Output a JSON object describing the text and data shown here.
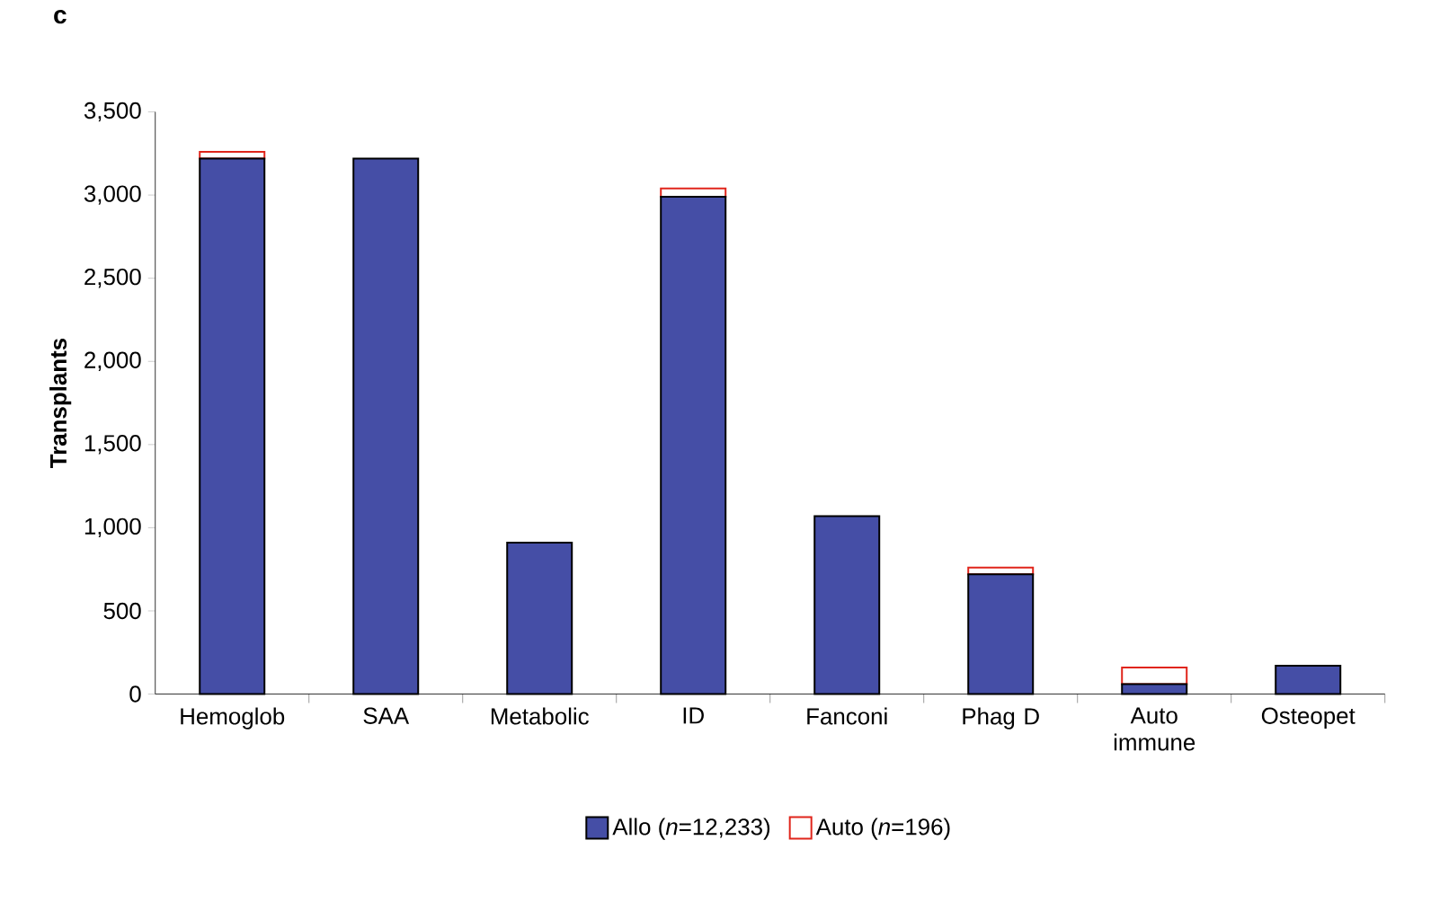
{
  "chart_data": {
    "type": "bar",
    "title": "c",
    "ylabel": "Transplants",
    "stacked": true,
    "legend": "bottom",
    "grid": false,
    "categories": [
      "Hemoglob",
      "SAA",
      "Metabolic",
      "ID",
      "Fanconi",
      "Phag D",
      "Auto immune",
      "Osteopet"
    ],
    "series": [
      {
        "name": "Allo (*n*=12,233)",
        "color": "#454ea6",
        "values": [
          3220,
          3220,
          910,
          2990,
          1070,
          720,
          60,
          170
        ]
      },
      {
        "name": "Auto (*n*=196)",
        "color": "#e0251b",
        "values": [
          40,
          0,
          0,
          50,
          0,
          40,
          100,
          0
        ]
      }
    ],
    "ylim": [
      0,
      3500
    ],
    "yticks": [
      {
        "value": 0,
        "label": "0"
      },
      {
        "value": 500,
        "label": "500"
      },
      {
        "value": 1000,
        "label": "1,000"
      },
      {
        "value": 1500,
        "label": "1,500"
      },
      {
        "value": 2000,
        "label": "2,000"
      },
      {
        "value": 2500,
        "label": "2,500"
      },
      {
        "value": 3000,
        "label": "3,000"
      },
      {
        "value": 3500,
        "label": "3,500"
      }
    ]
  }
}
